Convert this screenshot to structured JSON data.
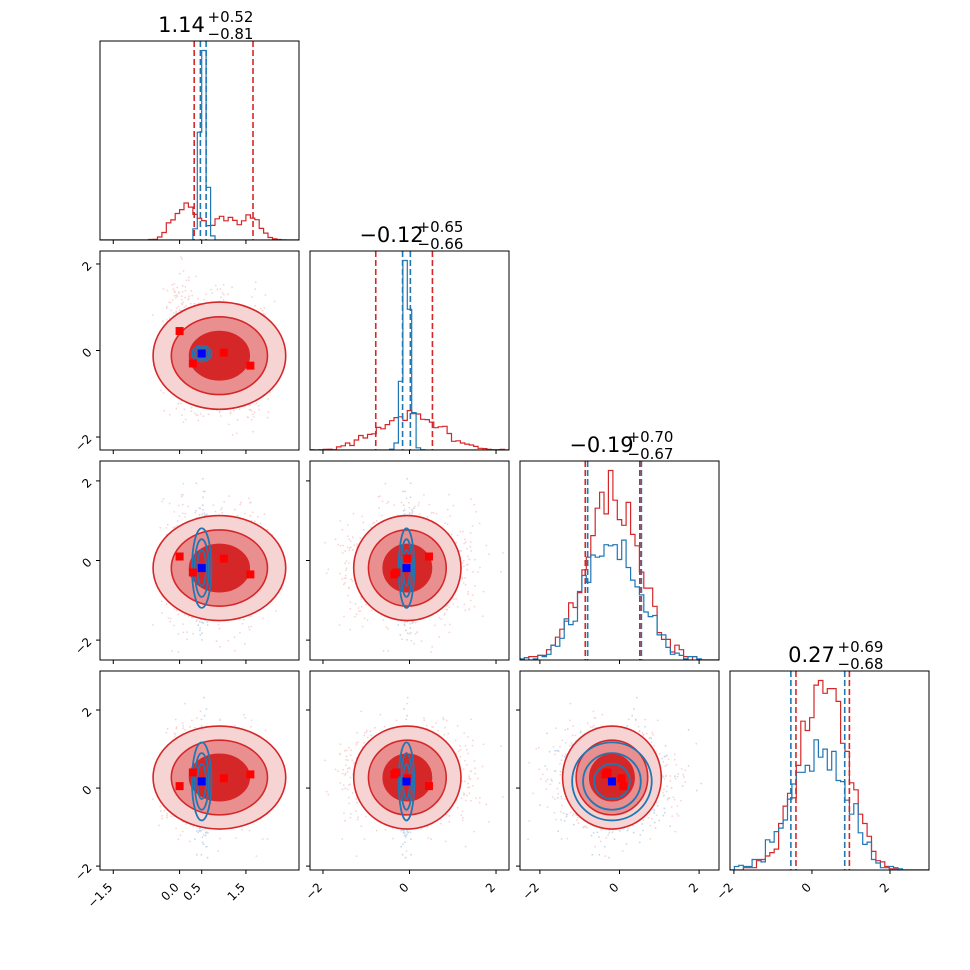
{
  "colors": {
    "red": "#d62728",
    "red_mid": "#ea8f90",
    "red_light": "#f7d4d4",
    "blue": "#1f77b4",
    "truth_blue": "#0000ff",
    "truth_red": "#ff0000"
  },
  "chart_data": {
    "type": "corner",
    "grid": false,
    "legend": "none",
    "n_params": 4,
    "series": [
      {
        "name": "",
        "color": "#d62728"
      },
      {
        "name": "",
        "color": "#1f77b4"
      }
    ],
    "titles": [
      {
        "value": "1.14",
        "plus": "+0.52",
        "minus": "−0.81"
      },
      {
        "value": "−0.12",
        "plus": "+0.65",
        "minus": "−0.66"
      },
      {
        "value": "−0.19",
        "plus": "+0.70",
        "minus": "−0.67"
      },
      {
        "value": "0.27",
        "plus": "+0.69",
        "minus": "−0.68"
      }
    ],
    "ranges": [
      [
        -1.8,
        2.7
      ],
      [
        -2.3,
        2.3
      ],
      [
        -2.5,
        2.5
      ],
      [
        -2.1,
        3.0
      ]
    ],
    "bottom_ticks": [
      {
        "values": [
          -1.5,
          0.0,
          0.5,
          1.5
        ],
        "labels": [
          "−1.5",
          "0.0",
          "0.5",
          "1.5"
        ]
      },
      {
        "values": [
          -2,
          0,
          2
        ],
        "labels": [
          "−2",
          "0",
          "2"
        ]
      },
      {
        "values": [
          -2,
          0,
          2
        ],
        "labels": [
          "−2",
          "0",
          "2"
        ]
      },
      {
        "values": [
          -2,
          0,
          2
        ],
        "labels": [
          "−2",
          "0",
          "2"
        ]
      }
    ],
    "left_ticks": [
      null,
      {
        "values": [
          -2,
          0,
          2
        ],
        "labels": [
          "−2",
          "0",
          "2"
        ]
      },
      {
        "values": [
          -2,
          0,
          2
        ],
        "labels": [
          "−2",
          "0",
          "2"
        ]
      },
      {
        "values": [
          -2,
          0,
          2
        ],
        "labels": [
          "−2",
          "0",
          "2"
        ]
      }
    ],
    "red_samples": {
      "centers": [
        [
          0.0,
          0.45
        ],
        [
          0.3,
          -0.2
        ],
        [
          1.0,
          0.0
        ],
        [
          1.6,
          -0.35
        ]
      ],
      "sigmas": [
        0.9,
        0.85,
        0.95,
        0.85
      ]
    },
    "blue_samples": {
      "centers": [
        [
          0.5,
          -0.07
        ],
        [
          0.5,
          -0.12
        ],
        [
          0.5,
          -0.19
        ],
        [
          0.5,
          0.17
        ]
      ],
      "sigmas": [
        0.11,
        0.1,
        0.95,
        0.95
      ]
    },
    "quantile_lines": {
      "red": [
        [
          0.33,
          1.66
        ],
        [
          -0.78,
          0.53
        ],
        [
          -0.86,
          0.51
        ],
        [
          -0.41,
          0.96
        ]
      ],
      "blue": [
        [
          0.47,
          0.6
        ],
        [
          -0.16,
          0.02
        ],
        [
          -0.8,
          0.55
        ],
        [
          -0.54,
          0.84
        ]
      ]
    },
    "truth_points": {
      "blue": [
        0.5,
        -0.07,
        -0.19,
        0.17
      ],
      "red": [
        [
          0.0,
          0.45,
          0.1,
          0.05
        ],
        [
          0.3,
          -0.3,
          -0.3,
          0.4
        ],
        [
          1.0,
          -0.05,
          0.05,
          0.25
        ],
        [
          1.6,
          -0.35,
          -0.35,
          0.35
        ]
      ]
    }
  }
}
